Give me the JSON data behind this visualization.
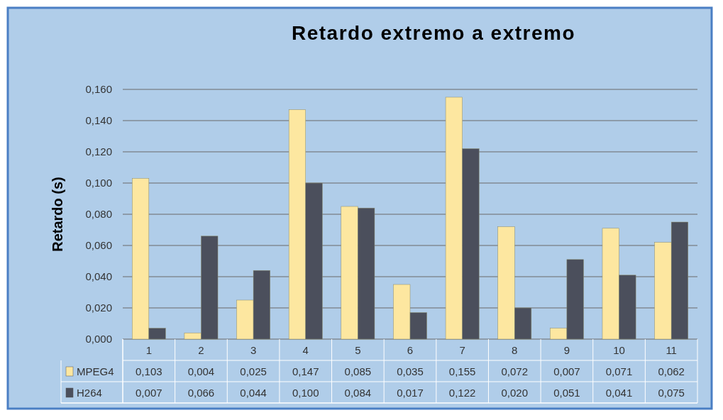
{
  "chart_data": {
    "type": "bar",
    "title": "Retardo extremo a extremo",
    "ylabel": "Retardo (s)",
    "categories": [
      "1",
      "2",
      "3",
      "4",
      "5",
      "6",
      "7",
      "8",
      "9",
      "10",
      "11"
    ],
    "series": [
      {
        "name": "MPEG4",
        "color": "#fde7a0",
        "values": [
          0.103,
          0.004,
          0.025,
          0.147,
          0.085,
          0.035,
          0.155,
          0.072,
          0.007,
          0.071,
          0.062
        ],
        "value_labels": [
          "0,103",
          "0,004",
          "0,025",
          "0,147",
          "0,085",
          "0,035",
          "0,155",
          "0,072",
          "0,007",
          "0,071",
          "0,062"
        ]
      },
      {
        "name": "H264",
        "color": "#4b4f5c",
        "values": [
          0.007,
          0.066,
          0.044,
          0.1,
          0.084,
          0.017,
          0.122,
          0.02,
          0.051,
          0.041,
          0.075
        ],
        "value_labels": [
          "0,007",
          "0,066",
          "0,044",
          "0,100",
          "0,084",
          "0,017",
          "0,122",
          "0,020",
          "0,051",
          "0,041",
          "0,075"
        ]
      }
    ],
    "ylim": [
      0,
      0.16
    ],
    "yticks": [
      {
        "value": 0,
        "label": "0,000"
      },
      {
        "value": 0.02,
        "label": "0,020"
      },
      {
        "value": 0.04,
        "label": "0,040"
      },
      {
        "value": 0.06,
        "label": "0,060"
      },
      {
        "value": 0.08,
        "label": "0,080"
      },
      {
        "value": 0.1,
        "label": "0,100"
      },
      {
        "value": 0.12,
        "label": "0,120"
      },
      {
        "value": 0.14,
        "label": "0,140"
      },
      {
        "value": 0.16,
        "label": "0,160"
      }
    ],
    "grid": "y",
    "legend": "bottom"
  }
}
